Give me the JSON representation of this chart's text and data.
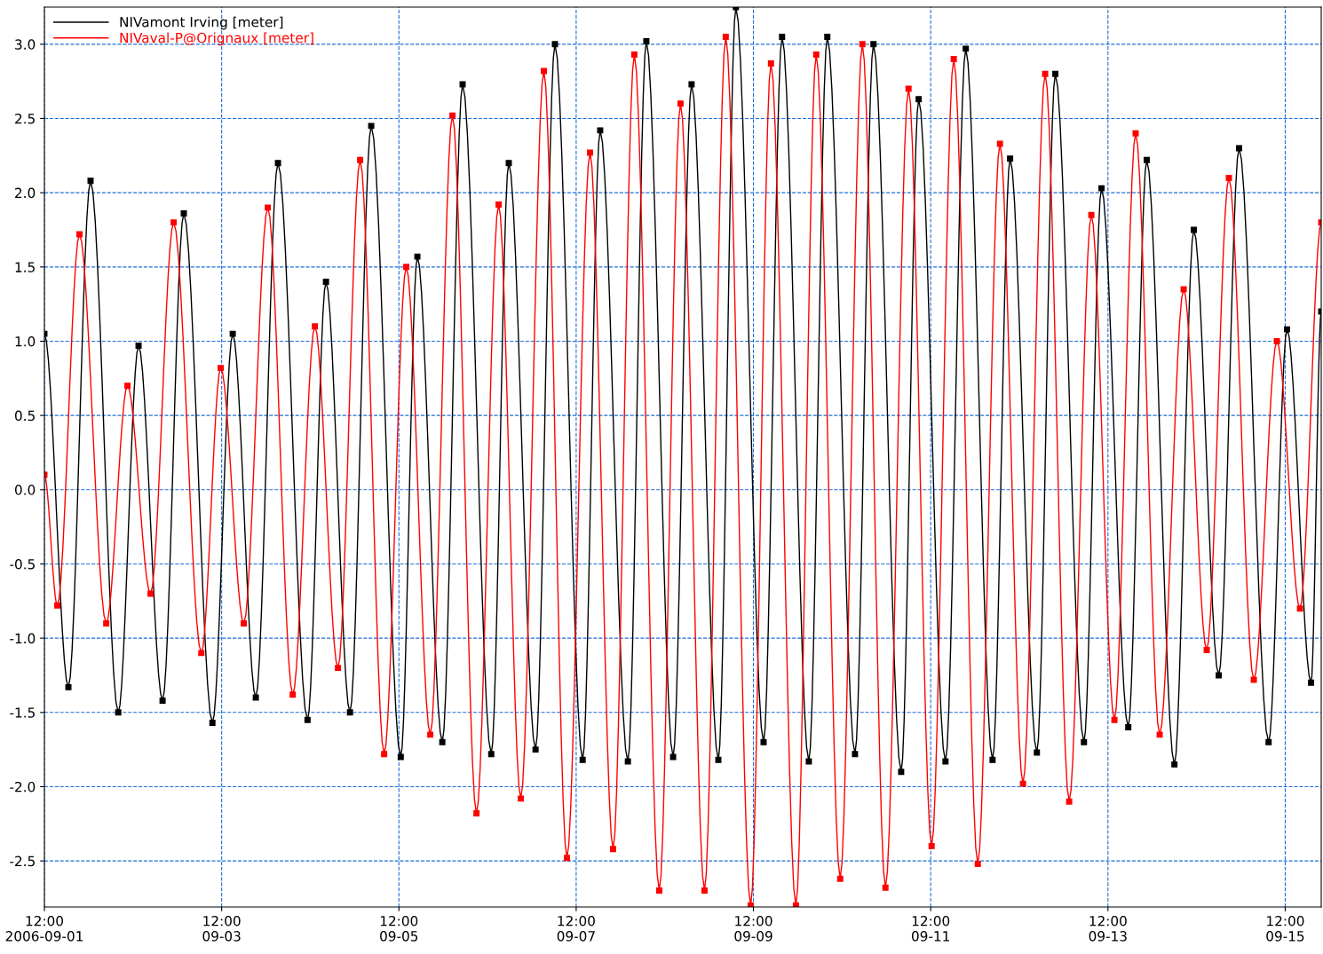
{
  "chart_data": {
    "type": "line",
    "legend": "top left",
    "grid": true,
    "marker": "square",
    "line_style": "solid",
    "xlim": [
      "2006-09-01T12:00",
      "2006-09-15T21:45"
    ],
    "ylim": [
      -2.81,
      3.25
    ],
    "yticks": [
      {
        "value": -2.5,
        "label": "-2.5"
      },
      {
        "value": -2,
        "label": "-2.0"
      },
      {
        "value": -1.5,
        "label": "-1.5"
      },
      {
        "value": -1,
        "label": "-1.0"
      },
      {
        "value": -0.5,
        "label": "-0.5"
      },
      {
        "value": 0,
        "label": "0.0"
      },
      0.5,
      {
        "value": 1,
        "label": "1.0"
      },
      1.5,
      {
        "value": 2,
        "label": "2.0"
      },
      2.5,
      {
        "value": 3,
        "label": "3.0"
      }
    ],
    "xticks": [
      {
        "value": "2006-09-01T12:00",
        "label": "12:00\n2006-09-01"
      },
      {
        "value": "2006-09-03T12:00",
        "label": "12:00\n09-03"
      },
      {
        "value": "2006-09-05T12:00",
        "label": "12:00\n09-05"
      },
      {
        "value": "2006-09-07T12:00",
        "label": "12:00\n09-07"
      },
      {
        "value": "2006-09-09T12:00",
        "label": "12:00\n09-09"
      },
      {
        "value": "2006-09-11T12:00",
        "label": "12:00\n09-11"
      },
      {
        "value": "2006-09-13T12:00",
        "label": "12:00\n09-13"
      },
      {
        "value": "2006-09-15T12:00",
        "label": "12:00\n09-15"
      }
    ],
    "series": [
      {
        "name": "NIVamont Irving [meter]",
        "color": "#000000",
        "x": [
          "2006-09-01T12:00",
          "2006-09-01T18:30",
          "2006-09-02T00:30",
          "2006-09-02T08:00",
          "2006-09-02T13:30",
          "2006-09-02T20:00",
          "2006-09-03T01:45",
          "2006-09-03T09:30",
          "2006-09-03T15:00",
          "2006-09-03T21:15",
          "2006-09-04T03:15",
          "2006-09-04T11:15",
          "2006-09-04T16:15",
          "2006-09-04T22:45",
          "2006-09-05T04:30",
          "2006-09-05T12:30",
          "2006-09-05T17:00",
          "2006-09-05T23:45",
          "2006-09-06T05:15",
          "2006-09-06T13:00",
          "2006-09-06T17:45",
          "2006-09-07T01:00",
          "2006-09-07T06:15",
          "2006-09-07T13:45",
          "2006-09-07T18:30",
          "2006-09-08T02:00",
          "2006-09-08T07:00",
          "2006-09-08T14:15",
          "2006-09-08T19:15",
          "2006-09-09T02:30",
          "2006-09-09T07:15",
          "2006-09-09T14:45",
          "2006-09-09T19:45",
          "2006-09-10T03:00",
          "2006-09-10T08:00",
          "2006-09-10T15:30",
          "2006-09-10T20:30",
          "2006-09-11T04:00",
          "2006-09-11T08:45",
          "2006-09-11T16:00",
          "2006-09-11T21:30",
          "2006-09-12T04:45",
          "2006-09-12T09:30",
          "2006-09-12T16:45",
          "2006-09-12T21:45",
          "2006-09-13T05:30",
          "2006-09-13T10:15",
          "2006-09-13T17:30",
          "2006-09-13T22:30",
          "2006-09-14T06:00",
          "2006-09-14T11:15",
          "2006-09-14T18:00",
          "2006-09-14T23:30",
          "2006-09-15T07:30",
          "2006-09-15T12:30",
          "2006-09-15T19:00",
          "2006-09-15T21:45"
        ],
        "values": [
          1.05,
          -1.33,
          2.08,
          -1.5,
          0.97,
          -1.42,
          1.86,
          -1.57,
          1.05,
          -1.4,
          2.2,
          -1.55,
          1.4,
          -1.5,
          2.45,
          -1.8,
          1.57,
          -1.7,
          2.73,
          -1.78,
          2.2,
          -1.75,
          3.0,
          -1.82,
          2.42,
          -1.83,
          3.02,
          -1.8,
          2.73,
          -1.82,
          3.25,
          -1.7,
          3.05,
          -1.83,
          3.05,
          -1.78,
          3.0,
          -1.9,
          2.63,
          -1.83,
          2.97,
          -1.82,
          2.23,
          -1.77,
          2.8,
          -1.7,
          2.03,
          -1.6,
          2.22,
          -1.85,
          1.75,
          -1.25,
          2.3,
          -1.7,
          1.08,
          -1.3,
          1.2
        ]
      },
      {
        "name": "NIVaval-P@Orignaux [meter]",
        "color": "#ff0000",
        "x": [
          "2006-09-01T12:00",
          "2006-09-01T15:30",
          "2006-09-01T21:30",
          "2006-09-02T04:45",
          "2006-09-02T10:30",
          "2006-09-02T16:45",
          "2006-09-02T23:00",
          "2006-09-03T06:30",
          "2006-09-03T11:45",
          "2006-09-03T18:00",
          "2006-09-04T00:30",
          "2006-09-04T07:15",
          "2006-09-04T13:15",
          "2006-09-04T19:30",
          "2006-09-05T01:30",
          "2006-09-05T08:00",
          "2006-09-05T14:00",
          "2006-09-05T20:30",
          "2006-09-06T02:30",
          "2006-09-06T09:00",
          "2006-09-06T15:00",
          "2006-09-06T21:00",
          "2006-09-07T03:15",
          "2006-09-07T09:30",
          "2006-09-07T15:45",
          "2006-09-07T22:00",
          "2006-09-08T03:45",
          "2006-09-08T10:30",
          "2006-09-08T16:15",
          "2006-09-08T22:45",
          "2006-09-09T04:30",
          "2006-09-09T11:15",
          "2006-09-09T16:45",
          "2006-09-09T23:30",
          "2006-09-10T05:00",
          "2006-09-10T11:30",
          "2006-09-10T17:30",
          "2006-09-10T23:45",
          "2006-09-11T06:00",
          "2006-09-11T12:15",
          "2006-09-11T18:15",
          "2006-09-12T00:45",
          "2006-09-12T06:45",
          "2006-09-12T13:00",
          "2006-09-12T19:00",
          "2006-09-13T01:30",
          "2006-09-13T07:30",
          "2006-09-13T13:45",
          "2006-09-13T19:30",
          "2006-09-14T02:00",
          "2006-09-14T08:30",
          "2006-09-14T14:45",
          "2006-09-14T20:45",
          "2006-09-15T03:30",
          "2006-09-15T09:45",
          "2006-09-15T16:00",
          "2006-09-15T21:45"
        ],
        "values": [
          0.1,
          -0.78,
          1.72,
          -0.9,
          0.7,
          -0.7,
          1.8,
          -1.1,
          0.82,
          -0.9,
          1.9,
          -1.38,
          1.1,
          -1.2,
          2.22,
          -1.78,
          1.5,
          -1.65,
          2.52,
          -2.18,
          1.92,
          -2.08,
          2.82,
          -2.48,
          2.27,
          -2.42,
          2.93,
          -2.7,
          2.6,
          -2.7,
          3.05,
          -2.8,
          2.87,
          -2.8,
          2.93,
          -2.62,
          3.0,
          -2.68,
          2.7,
          -2.4,
          2.9,
          -2.52,
          2.33,
          -1.98,
          2.8,
          -2.1,
          1.85,
          -1.55,
          2.4,
          -1.65,
          1.35,
          -1.08,
          2.1,
          -1.28,
          1.0,
          -0.8,
          1.8
        ]
      }
    ]
  }
}
